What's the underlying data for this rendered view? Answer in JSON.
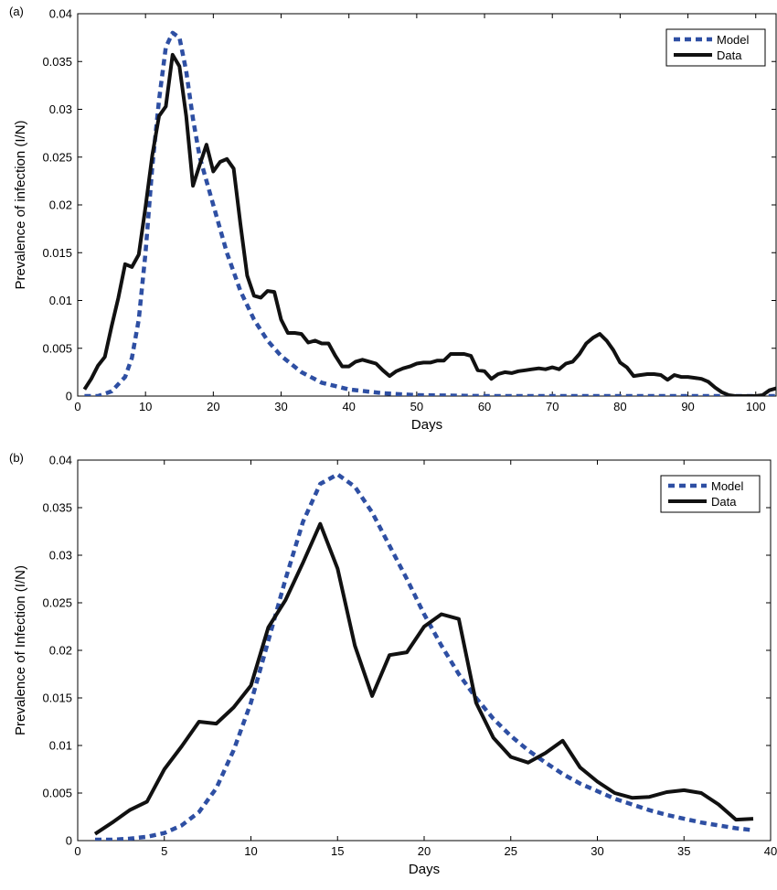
{
  "chart_data": [
    {
      "type": "line",
      "panel_label": "(a)",
      "xlabel": "Days",
      "ylabel": "Prevalence of infection (I/N)",
      "xlim": [
        0,
        103
      ],
      "ylim": [
        0,
        0.04
      ],
      "x_ticks": [
        0,
        10,
        20,
        30,
        40,
        50,
        60,
        70,
        80,
        90,
        100
      ],
      "y_ticks": [
        0,
        0.005,
        0.01,
        0.015,
        0.02,
        0.025,
        0.03,
        0.035,
        0.04
      ],
      "y_tick_labels": [
        "0",
        "0.005",
        "0.01",
        "0.015",
        "0.02",
        "0.025",
        "0.03",
        "0.035",
        "0.04"
      ],
      "legend_position": "top-right",
      "series": [
        {
          "name": "Model",
          "color": "#2e4fa3",
          "style": "dashed",
          "points": [
            [
              1,
              0
            ],
            [
              3,
              0
            ],
            [
              5,
              0.0005
            ],
            [
              7,
              0.002
            ],
            [
              8,
              0.004
            ],
            [
              9,
              0.008
            ],
            [
              10,
              0.015
            ],
            [
              11,
              0.024
            ],
            [
              12,
              0.031
            ],
            [
              13,
              0.0365
            ],
            [
              14,
              0.038
            ],
            [
              15,
              0.0375
            ],
            [
              16,
              0.034
            ],
            [
              17,
              0.029
            ],
            [
              18,
              0.025
            ],
            [
              20,
              0.02
            ],
            [
              22,
              0.015
            ],
            [
              24,
              0.011
            ],
            [
              26,
              0.008
            ],
            [
              28,
              0.0058
            ],
            [
              30,
              0.0042
            ],
            [
              33,
              0.0025
            ],
            [
              36,
              0.0014
            ],
            [
              40,
              0.0007
            ],
            [
              45,
              0.0003
            ],
            [
              50,
              0.0001
            ],
            [
              55,
              5e-05
            ],
            [
              60,
              0
            ],
            [
              70,
              0
            ],
            [
              80,
              0
            ],
            [
              90,
              0
            ],
            [
              100,
              0
            ],
            [
              103,
              0
            ]
          ]
        },
        {
          "name": "Data",
          "color": "#111111",
          "style": "solid",
          "points": [
            [
              1,
              0.0007
            ],
            [
              2,
              0.0018
            ],
            [
              3,
              0.0032
            ],
            [
              4,
              0.0041
            ],
            [
              5,
              0.0073
            ],
            [
              6,
              0.0103
            ],
            [
              7,
              0.0138
            ],
            [
              8,
              0.0135
            ],
            [
              9,
              0.0148
            ],
            [
              10,
              0.0198
            ],
            [
              11,
              0.0252
            ],
            [
              12,
              0.0293
            ],
            [
              13,
              0.0303
            ],
            [
              14,
              0.0357
            ],
            [
              15,
              0.0345
            ],
            [
              16,
              0.0293
            ],
            [
              17,
              0.022
            ],
            [
              18,
              0.0242
            ],
            [
              19,
              0.0263
            ],
            [
              20,
              0.0235
            ],
            [
              21,
              0.0245
            ],
            [
              22,
              0.0248
            ],
            [
              23,
              0.0238
            ],
            [
              24,
              0.018
            ],
            [
              25,
              0.0126
            ],
            [
              26,
              0.0105
            ],
            [
              27,
              0.0103
            ],
            [
              28,
              0.011
            ],
            [
              29,
              0.0109
            ],
            [
              30,
              0.008
            ],
            [
              31,
              0.0066
            ],
            [
              32,
              0.0066
            ],
            [
              33,
              0.0065
            ],
            [
              34,
              0.0056
            ],
            [
              35,
              0.0058
            ],
            [
              36,
              0.0055
            ],
            [
              37,
              0.0055
            ],
            [
              38,
              0.0042
            ],
            [
              39,
              0.0031
            ],
            [
              40,
              0.0031
            ],
            [
              41,
              0.0036
            ],
            [
              42,
              0.0038
            ],
            [
              43,
              0.0036
            ],
            [
              44,
              0.0034
            ],
            [
              45,
              0.0027
            ],
            [
              46,
              0.0021
            ],
            [
              47,
              0.0026
            ],
            [
              48,
              0.0029
            ],
            [
              49,
              0.0031
            ],
            [
              50,
              0.0034
            ],
            [
              51,
              0.0035
            ],
            [
              52,
              0.0035
            ],
            [
              53,
              0.0037
            ],
            [
              54,
              0.0037
            ],
            [
              55,
              0.0044
            ],
            [
              56,
              0.0044
            ],
            [
              57,
              0.0044
            ],
            [
              58,
              0.0042
            ],
            [
              59,
              0.0027
            ],
            [
              60,
              0.0026
            ],
            [
              61,
              0.0018
            ],
            [
              62,
              0.0023
            ],
            [
              63,
              0.0025
            ],
            [
              64,
              0.0024
            ],
            [
              65,
              0.0026
            ],
            [
              66,
              0.0027
            ],
            [
              67,
              0.0028
            ],
            [
              68,
              0.0029
            ],
            [
              69,
              0.0028
            ],
            [
              70,
              0.003
            ],
            [
              71,
              0.0028
            ],
            [
              72,
              0.0034
            ],
            [
              73,
              0.0036
            ],
            [
              74,
              0.0044
            ],
            [
              75,
              0.0055
            ],
            [
              76,
              0.0061
            ],
            [
              77,
              0.0065
            ],
            [
              78,
              0.0058
            ],
            [
              79,
              0.0048
            ],
            [
              80,
              0.0035
            ],
            [
              81,
              0.003
            ],
            [
              82,
              0.0021
            ],
            [
              83,
              0.0022
            ],
            [
              84,
              0.0023
            ],
            [
              85,
              0.0023
            ],
            [
              86,
              0.0022
            ],
            [
              87,
              0.0017
            ],
            [
              88,
              0.0022
            ],
            [
              89,
              0.002
            ],
            [
              90,
              0.002
            ],
            [
              91,
              0.0019
            ],
            [
              92,
              0.0018
            ],
            [
              93,
              0.0015
            ],
            [
              94,
              0.0009
            ],
            [
              95,
              0.0004
            ],
            [
              96,
              0.0001
            ],
            [
              97,
              0
            ],
            [
              98,
              0
            ],
            [
              99,
              0
            ],
            [
              100,
              0
            ],
            [
              101,
              0.0001
            ],
            [
              102,
              0.0006
            ],
            [
              103,
              0.0008
            ]
          ]
        }
      ]
    },
    {
      "type": "line",
      "panel_label": "(b)",
      "xlabel": "Days",
      "ylabel": "Prevalence of Infection (I/N)",
      "xlim": [
        0,
        40
      ],
      "ylim": [
        0,
        0.04
      ],
      "x_ticks": [
        0,
        5,
        10,
        15,
        20,
        25,
        30,
        35,
        40
      ],
      "y_ticks": [
        0,
        0.005,
        0.01,
        0.015,
        0.02,
        0.025,
        0.03,
        0.035,
        0.04
      ],
      "y_tick_labels": [
        "0",
        "0.005",
        "0.01",
        "0.015",
        "0.02",
        "0.025",
        "0.03",
        "0.035",
        "0.04"
      ],
      "legend_position": "top-right",
      "series": [
        {
          "name": "Model",
          "color": "#2e4fa3",
          "style": "dashed",
          "points": [
            [
              1,
              0.0001
            ],
            [
              2,
              0.0001
            ],
            [
              3,
              0.0002
            ],
            [
              4,
              0.0004
            ],
            [
              5,
              0.0008
            ],
            [
              6,
              0.0016
            ],
            [
              7,
              0.003
            ],
            [
              8,
              0.0055
            ],
            [
              9,
              0.0095
            ],
            [
              10,
              0.0145
            ],
            [
              11,
              0.021
            ],
            [
              12,
              0.0275
            ],
            [
              13,
              0.0335
            ],
            [
              14,
              0.0375
            ],
            [
              15,
              0.0385
            ],
            [
              16,
              0.0372
            ],
            [
              17,
              0.0345
            ],
            [
              18,
              0.031
            ],
            [
              19,
              0.0275
            ],
            [
              20,
              0.0238
            ],
            [
              21,
              0.0205
            ],
            [
              22,
              0.0175
            ],
            [
              23,
              0.015
            ],
            [
              24,
              0.0128
            ],
            [
              25,
              0.011
            ],
            [
              26,
              0.0095
            ],
            [
              27,
              0.0082
            ],
            [
              28,
              0.007
            ],
            [
              29,
              0.006
            ],
            [
              30,
              0.0052
            ],
            [
              31,
              0.0044
            ],
            [
              32,
              0.0038
            ],
            [
              33,
              0.0032
            ],
            [
              34,
              0.0027
            ],
            [
              35,
              0.0023
            ],
            [
              36,
              0.0019
            ],
            [
              37,
              0.0016
            ],
            [
              38,
              0.0013
            ],
            [
              39,
              0.0011
            ]
          ]
        },
        {
          "name": "Data",
          "color": "#111111",
          "style": "solid",
          "points": [
            [
              1,
              0.0007
            ],
            [
              2,
              0.0019
            ],
            [
              3,
              0.0032
            ],
            [
              4,
              0.0041
            ],
            [
              5,
              0.0075
            ],
            [
              6,
              0.0099
            ],
            [
              7,
              0.0125
            ],
            [
              8,
              0.0123
            ],
            [
              9,
              0.014
            ],
            [
              10,
              0.0163
            ],
            [
              11,
              0.0224
            ],
            [
              12,
              0.0253
            ],
            [
              13,
              0.0292
            ],
            [
              14,
              0.0333
            ],
            [
              15,
              0.0286
            ],
            [
              16,
              0.0205
            ],
            [
              17,
              0.0152
            ],
            [
              18,
              0.0195
            ],
            [
              19,
              0.0198
            ],
            [
              20,
              0.0225
            ],
            [
              21,
              0.0238
            ],
            [
              22,
              0.0233
            ],
            [
              23,
              0.0145
            ],
            [
              24,
              0.0108
            ],
            [
              25,
              0.0088
            ],
            [
              26,
              0.0082
            ],
            [
              27,
              0.0092
            ],
            [
              28,
              0.0105
            ],
            [
              29,
              0.0077
            ],
            [
              30,
              0.0062
            ],
            [
              31,
              0.005
            ],
            [
              32,
              0.0045
            ],
            [
              33,
              0.0046
            ],
            [
              34,
              0.0051
            ],
            [
              35,
              0.0053
            ],
            [
              36,
              0.005
            ],
            [
              37,
              0.0038
            ],
            [
              38,
              0.0022
            ],
            [
              39,
              0.0023
            ]
          ]
        }
      ]
    }
  ]
}
